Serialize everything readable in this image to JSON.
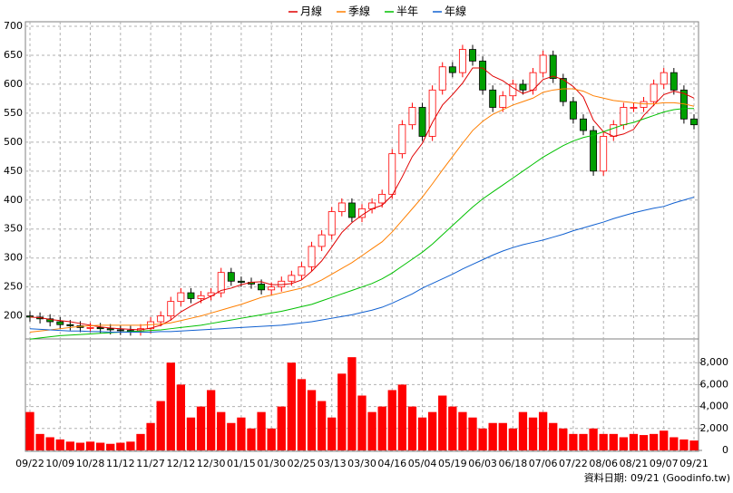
{
  "chart_data": {
    "type": "candlestick",
    "series": [
      {
        "name": "月線",
        "color": "#e00000",
        "values": [
          198,
          197,
          194,
          192,
          190,
          187,
          184,
          181,
          179,
          178,
          177,
          176,
          179,
          184,
          193,
          207,
          217,
          226,
          234,
          244,
          248,
          254,
          258,
          259,
          254,
          254,
          256,
          262,
          277,
          295,
          319,
          344,
          361,
          374,
          385,
          391,
          408,
          440,
          475,
          498,
          534,
          564,
          582,
          602,
          628,
          628,
          614,
          606,
          594,
          584,
          590,
          608,
          614,
          608,
          596,
          578,
          538,
          518,
          510,
          514,
          522,
          546,
          564,
          582,
          588,
          584,
          576
        ]
      },
      {
        "name": "季線",
        "color": "#ff7f00",
        "values": [
          172,
          174,
          176,
          178,
          180,
          182,
          183,
          184,
          184,
          184,
          184,
          184,
          185,
          186,
          188,
          192,
          196,
          200,
          205,
          210,
          215,
          220,
          226,
          232,
          236,
          240,
          244,
          248,
          254,
          262,
          272,
          282,
          292,
          304,
          316,
          328,
          345,
          365,
          385,
          405,
          428,
          452,
          475,
          498,
          520,
          536,
          548,
          556,
          564,
          570,
          576,
          586,
          590,
          592,
          592,
          588,
          580,
          576,
          572,
          570,
          568,
          566,
          566,
          568,
          568,
          566,
          562
        ]
      },
      {
        "name": "半年",
        "color": "#00c000",
        "values": [
          160,
          162,
          164,
          166,
          167,
          168,
          169,
          170,
          171,
          172,
          173,
          174,
          175,
          176,
          178,
          180,
          182,
          184,
          187,
          190,
          193,
          196,
          199,
          202,
          205,
          208,
          212,
          216,
          220,
          226,
          232,
          238,
          244,
          250,
          256,
          264,
          274,
          286,
          298,
          310,
          324,
          340,
          356,
          372,
          388,
          402,
          414,
          426,
          438,
          450,
          462,
          474,
          484,
          494,
          502,
          508,
          512,
          518,
          524,
          530,
          534,
          540,
          546,
          552,
          556,
          558,
          558
        ]
      },
      {
        "name": "年線",
        "color": "#1060d0",
        "values": [
          178,
          177,
          176,
          175,
          174,
          174,
          173,
          173,
          172,
          172,
          172,
          172,
          172,
          173,
          173,
          174,
          175,
          176,
          177,
          178,
          179,
          180,
          181,
          182,
          183,
          184,
          186,
          188,
          190,
          193,
          196,
          199,
          202,
          206,
          210,
          215,
          222,
          230,
          238,
          248,
          256,
          264,
          272,
          281,
          289,
          297,
          305,
          312,
          318,
          323,
          327,
          331,
          336,
          341,
          347,
          352,
          357,
          362,
          368,
          373,
          378,
          382,
          386,
          389,
          395,
          400,
          405
        ]
      }
    ],
    "categories": [
      "09/22",
      null,
      null,
      "10/09",
      null,
      null,
      "10/28",
      null,
      null,
      "11/12",
      null,
      null,
      "11/27",
      null,
      null,
      "12/12",
      null,
      null,
      "12/30",
      null,
      null,
      "01/15",
      null,
      null,
      "01/30",
      null,
      null,
      "02/25",
      null,
      null,
      "03/13",
      null,
      null,
      "03/30",
      null,
      null,
      "04/16",
      null,
      null,
      "05/04",
      null,
      null,
      "05/19",
      null,
      null,
      "06/03",
      null,
      null,
      "06/18",
      null,
      null,
      "07/06",
      null,
      null,
      "07/22",
      null,
      null,
      "08/06",
      null,
      null,
      "08/21",
      null,
      null,
      "09/07",
      null,
      null,
      "09/21"
    ],
    "open": [
      200,
      198,
      195,
      190,
      185,
      183,
      180,
      180,
      178,
      176,
      175,
      174,
      178,
      190,
      200,
      225,
      240,
      230,
      235,
      240,
      275,
      260,
      258,
      255,
      245,
      250,
      260,
      270,
      285,
      320,
      340,
      380,
      395,
      370,
      385,
      395,
      410,
      480,
      530,
      560,
      510,
      590,
      630,
      620,
      660,
      640,
      590,
      560,
      580,
      600,
      590,
      620,
      650,
      610,
      570,
      540,
      520,
      450,
      510,
      530,
      560,
      560,
      570,
      600,
      620,
      590,
      540
    ],
    "high": [
      208,
      206,
      203,
      198,
      193,
      191,
      188,
      188,
      186,
      184,
      183,
      186,
      198,
      208,
      233,
      248,
      248,
      243,
      248,
      283,
      283,
      268,
      266,
      263,
      258,
      268,
      278,
      293,
      328,
      348,
      388,
      403,
      403,
      393,
      403,
      418,
      488,
      538,
      568,
      568,
      598,
      638,
      638,
      668,
      668,
      648,
      598,
      588,
      608,
      608,
      628,
      658,
      658,
      618,
      578,
      548,
      528,
      518,
      538,
      568,
      568,
      578,
      608,
      628,
      628,
      598,
      548
    ],
    "low": [
      190,
      187,
      182,
      177,
      175,
      172,
      172,
      170,
      168,
      167,
      166,
      166,
      170,
      182,
      192,
      217,
      222,
      222,
      227,
      232,
      252,
      250,
      247,
      237,
      237,
      242,
      252,
      262,
      277,
      312,
      332,
      372,
      362,
      362,
      377,
      387,
      402,
      472,
      522,
      502,
      502,
      582,
      612,
      612,
      632,
      582,
      552,
      552,
      572,
      582,
      582,
      612,
      602,
      562,
      532,
      512,
      442,
      442,
      502,
      522,
      552,
      552,
      562,
      592,
      582,
      532,
      522
    ],
    "close": [
      198,
      195,
      190,
      185,
      183,
      180,
      180,
      178,
      176,
      175,
      174,
      178,
      190,
      200,
      225,
      240,
      230,
      235,
      240,
      275,
      260,
      258,
      255,
      245,
      250,
      260,
      270,
      285,
      320,
      340,
      380,
      395,
      370,
      385,
      395,
      410,
      480,
      530,
      560,
      510,
      590,
      630,
      620,
      660,
      640,
      590,
      560,
      580,
      600,
      590,
      620,
      650,
      610,
      570,
      540,
      520,
      450,
      510,
      530,
      560,
      560,
      570,
      600,
      620,
      590,
      540,
      530
    ],
    "up_color": "#ff0000",
    "down_color": "#00a000",
    "ylim": [
      165,
      700
    ],
    "yticks": [
      200,
      250,
      300,
      350,
      400,
      450,
      500,
      550,
      600,
      650,
      700
    ],
    "volume": [
      3500,
      1500,
      1200,
      1000,
      800,
      700,
      800,
      700,
      600,
      700,
      800,
      1500,
      2500,
      4500,
      8000,
      6000,
      3000,
      4000,
      5500,
      3500,
      2500,
      3000,
      2000,
      3500,
      2000,
      4000,
      8000,
      6500,
      5500,
      4500,
      3000,
      7000,
      8500,
      5000,
      3500,
      4000,
      5500,
      6000,
      4000,
      3000,
      3500,
      5000,
      4000,
      3500,
      3000,
      2000,
      2500,
      2500,
      2000,
      3500,
      3000,
      3500,
      2500,
      2000,
      1500,
      1500,
      2000,
      1500,
      1500,
      1200,
      1500,
      1400,
      1500,
      1800,
      1200,
      1000,
      900
    ],
    "volume_color": "#ff0000",
    "y2lim": [
      0,
      10000
    ],
    "y2ticks": [
      0,
      {
        "value": 2000,
        "label": "2,000"
      },
      {
        "value": 4000,
        "label": "4,000"
      },
      {
        "value": 6000,
        "label": "6,000"
      },
      {
        "value": 8000,
        "label": "8,000"
      }
    ],
    "grid": true,
    "footnote": "資料日期: 09/21  (Goodinfo.tw)"
  }
}
